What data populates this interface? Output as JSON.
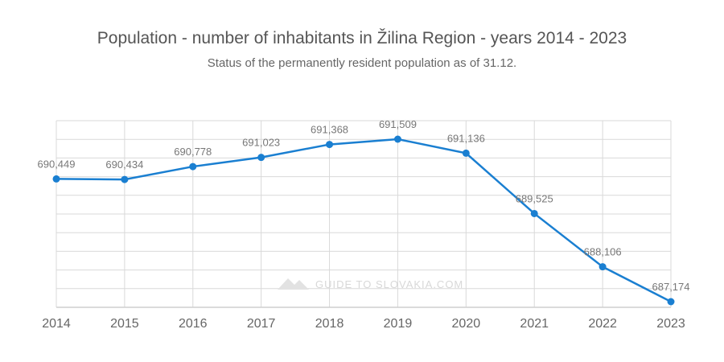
{
  "title": "Population - number of inhabitants in Žilina Region - years 2014 - 2023",
  "subtitle": "Status of the permanently resident population as of 31.12.",
  "watermark": "GUIDE TO SLOVAKIA.COM",
  "colors": {
    "line": "#1a7fd1",
    "grid": "#d9d9d9",
    "text": "#666666"
  },
  "chart_data": {
    "type": "line",
    "x": [
      "2014",
      "2015",
      "2016",
      "2017",
      "2018",
      "2019",
      "2020",
      "2021",
      "2022",
      "2023"
    ],
    "series": [
      {
        "values": [
          690449,
          690434,
          690778,
          691023,
          691368,
          691509,
          691136,
          689525,
          688106,
          687174
        ],
        "labels": [
          "690,449",
          "690,434",
          "690,778",
          "691,023",
          "691,368",
          "691,509",
          "691,136",
          "689,525",
          "688,106",
          "687,174"
        ]
      }
    ],
    "ylim": [
      687174,
      691509
    ],
    "y_axis_labels_shown": false,
    "grid": true,
    "xlabel": "",
    "ylabel": ""
  }
}
